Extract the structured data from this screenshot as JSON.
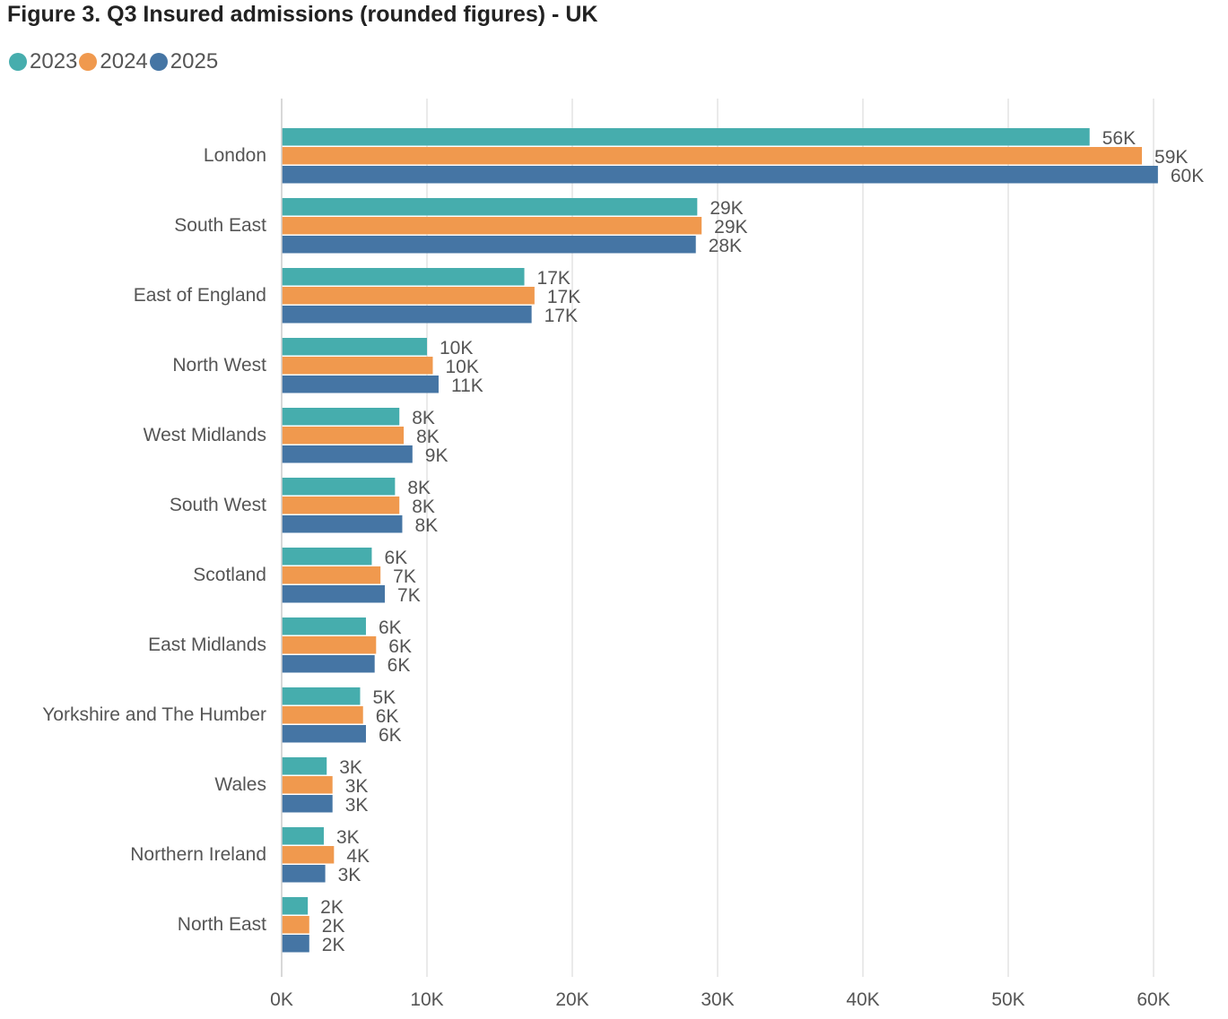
{
  "chart_data": {
    "type": "bar",
    "orientation": "horizontal",
    "title": "Figure 3. Q3 Insured admissions (rounded figures) - UK",
    "categories": [
      "London",
      "South East",
      "East of England",
      "North West",
      "West Midlands",
      "South West",
      "Scotland",
      "East Midlands",
      "Yorkshire and The Humber",
      "Wales",
      "Northern Ireland",
      "North East"
    ],
    "series": [
      {
        "name": "2023",
        "color": "#46adad",
        "values": [
          55600,
          28600,
          16700,
          10000,
          8100,
          7800,
          6200,
          5800,
          5400,
          3100,
          2900,
          1800
        ],
        "labels": [
          "56K",
          "29K",
          "17K",
          "10K",
          "8K",
          "8K",
          "6K",
          "6K",
          "5K",
          "3K",
          "3K",
          "2K"
        ]
      },
      {
        "name": "2024",
        "color": "#f0994e",
        "values": [
          59200,
          28900,
          17400,
          10400,
          8400,
          8100,
          6800,
          6500,
          5600,
          3500,
          3600,
          1900
        ],
        "labels": [
          "59K",
          "29K",
          "17K",
          "10K",
          "8K",
          "8K",
          "7K",
          "6K",
          "6K",
          "3K",
          "4K",
          "2K"
        ]
      },
      {
        "name": "2025",
        "color": "#4575a4",
        "values": [
          60300,
          28500,
          17200,
          10800,
          9000,
          8300,
          7100,
          6400,
          5800,
          3500,
          3000,
          1900
        ],
        "labels": [
          "60K",
          "28K",
          "17K",
          "11K",
          "9K",
          "8K",
          "7K",
          "6K",
          "6K",
          "3K",
          "3K",
          "2K"
        ]
      }
    ],
    "xlim": [
      0,
      60000
    ],
    "xticks": [
      0,
      10000,
      20000,
      30000,
      40000,
      50000,
      60000
    ],
    "xtick_labels": [
      "0K",
      "10K",
      "20K",
      "30K",
      "40K",
      "50K",
      "60K"
    ],
    "grid": true,
    "legend": "top-left"
  }
}
